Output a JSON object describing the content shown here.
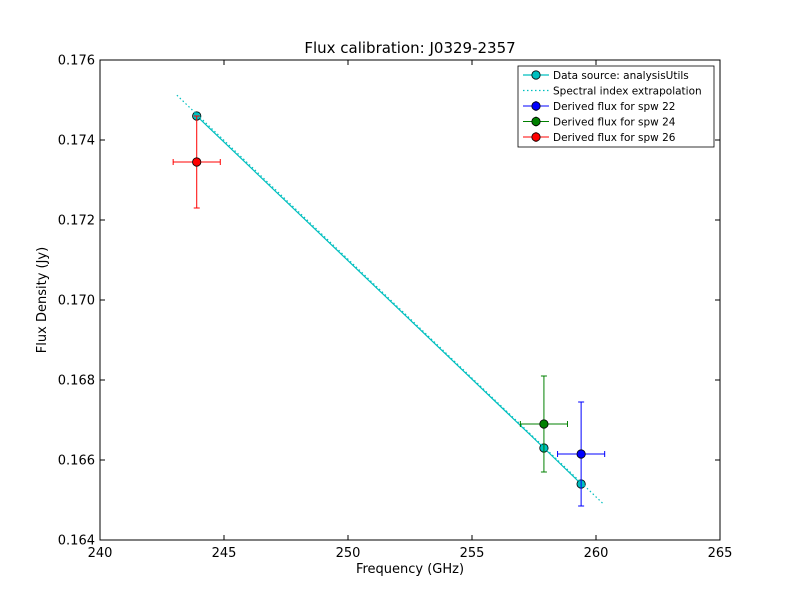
{
  "chart_data": {
    "type": "scatter",
    "title": "Flux calibration: J0329-2357",
    "xlabel": "Frequency (GHz)",
    "ylabel": "Flux Density (Jy)",
    "xlim": [
      240,
      265
    ],
    "ylim": [
      0.164,
      0.176
    ],
    "xticks": [
      240,
      245,
      250,
      255,
      260,
      265
    ],
    "yticks": [
      0.164,
      0.166,
      0.168,
      0.17,
      0.172,
      0.174,
      0.176
    ],
    "xtick_labels": [
      "240",
      "245",
      "250",
      "255",
      "260",
      "265"
    ],
    "ytick_labels": [
      "0.164",
      "0.166",
      "0.168",
      "0.170",
      "0.172",
      "0.174",
      "0.176"
    ],
    "grid": false,
    "legend_position": "top-right",
    "series": [
      {
        "name": "Data source: analysisUtils",
        "kind": "line-markers",
        "color": "#00bfbf",
        "x": [
          243.9,
          257.9,
          259.4
        ],
        "y": [
          0.1746,
          0.1663,
          0.1654
        ]
      },
      {
        "name": "Spectral index extrapolation",
        "kind": "dotted-line",
        "color": "#00bfbf",
        "x": [
          243.1,
          260.3
        ],
        "y": [
          0.17512,
          0.1649
        ]
      },
      {
        "name": "Derived flux for spw 22",
        "kind": "errorbar",
        "color": "#0000ff",
        "x": [
          259.4
        ],
        "y": [
          0.16615
        ],
        "xerr": [
          0.95
        ],
        "yerr": [
          0.0013
        ]
      },
      {
        "name": "Derived flux for spw 24",
        "kind": "errorbar",
        "color": "#008000",
        "x": [
          257.9
        ],
        "y": [
          0.1669
        ],
        "xerr": [
          0.95
        ],
        "yerr": [
          0.0012
        ]
      },
      {
        "name": "Derived flux for spw 26",
        "kind": "errorbar",
        "color": "#ff0000",
        "x": [
          243.9
        ],
        "y": [
          0.17345
        ],
        "xerr": [
          0.95
        ],
        "yerr": [
          0.00115
        ]
      }
    ]
  }
}
